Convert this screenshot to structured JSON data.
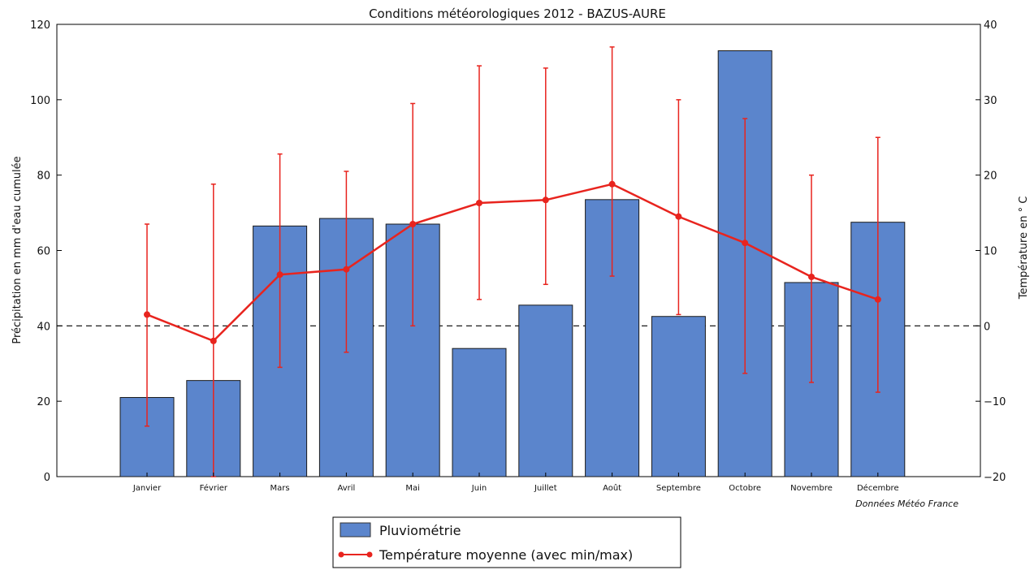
{
  "chart_data": {
    "type": "bar+line",
    "title": "Conditions météorologiques 2012 - BAZUS-AURE",
    "categories": [
      "Janvier",
      "Février",
      "Mars",
      "Avril",
      "Mai",
      "Juin",
      "Juillet",
      "Août",
      "Septembre",
      "Octobre",
      "Novembre",
      "Décembre"
    ],
    "left_axis": {
      "label": "Précipitation en mm d'eau cumulée",
      "range": [
        0,
        120
      ],
      "ticks": [
        "0",
        "20",
        "40",
        "60",
        "80",
        "100",
        "120"
      ]
    },
    "right_axis": {
      "label": "Température en ° C",
      "range": [
        -20,
        40
      ],
      "ticks": [
        "−20",
        "−10",
        "0",
        "10",
        "20",
        "30",
        "40"
      ]
    },
    "series": [
      {
        "name": "Pluviométrie",
        "type": "bar",
        "axis": "left",
        "color": "#5b85cc",
        "values": [
          21,
          25.5,
          66.5,
          68.5,
          67,
          34,
          45.5,
          73.5,
          42.5,
          113,
          51.5,
          67.5
        ]
      },
      {
        "name": "Température moyenne (avec min/max)",
        "type": "line",
        "axis": "right",
        "color": "#e8241e",
        "mean": [
          1.5,
          -2,
          6.8,
          7.5,
          13.5,
          16.3,
          16.7,
          18.8,
          14.5,
          11,
          6.5,
          3.5
        ],
        "min": [
          -13.3,
          -20,
          -5.5,
          -3.5,
          0,
          3.5,
          5.5,
          6.6,
          1.5,
          -6.3,
          -7.5,
          -8.8
        ],
        "max": [
          13.5,
          18.8,
          22.8,
          20.5,
          29.5,
          34.5,
          34.2,
          37,
          30,
          27.5,
          20,
          25
        ]
      }
    ],
    "zero_line": {
      "axis": "right",
      "value": 0,
      "style": "dashed"
    },
    "legend": {
      "position": "bottom-center"
    },
    "grid": false
  },
  "source_note": "Données Météo France"
}
